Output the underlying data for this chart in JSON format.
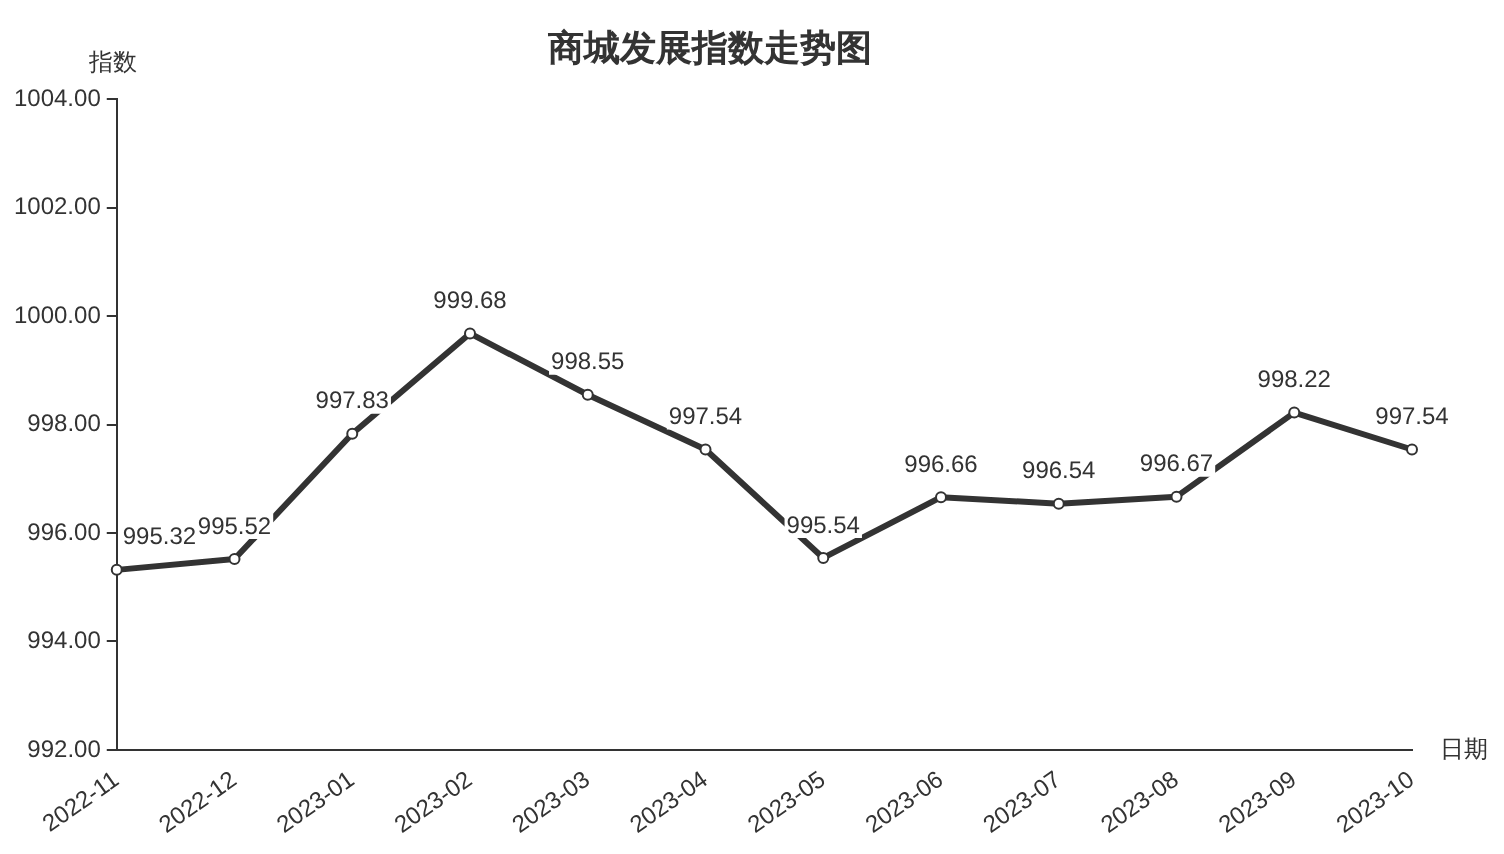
{
  "chart_data": {
    "type": "line",
    "title": "商城发展指数走势图",
    "xlabel": "日期",
    "ylabel": "指数",
    "categories": [
      "2022-11",
      "2022-12",
      "2023-01",
      "2023-02",
      "2023-03",
      "2023-04",
      "2023-05",
      "2023-06",
      "2023-07",
      "2023-08",
      "2023-09",
      "2023-10"
    ],
    "series": [
      {
        "color": "#333333",
        "values": [
          995.32,
          995.52,
          997.83,
          999.68,
          998.55,
          997.54,
          995.54,
          996.66,
          996.54,
          996.67,
          998.22,
          997.54
        ]
      }
    ],
    "ylim": [
      992,
      1004
    ],
    "yticks": [
      {
        "value": 992,
        "label": "992.00"
      },
      {
        "value": 994,
        "label": "994.00"
      },
      {
        "value": 996,
        "label": "996.00"
      },
      {
        "value": 998,
        "label": "998.00"
      },
      {
        "value": 1000,
        "label": "1000.00"
      },
      {
        "value": 1002,
        "label": "1002.00"
      },
      {
        "value": 1004,
        "label": "1004.00"
      }
    ],
    "grid": false,
    "legend": false,
    "marker": "circle",
    "line_style": "solid",
    "data_labels": true
  }
}
